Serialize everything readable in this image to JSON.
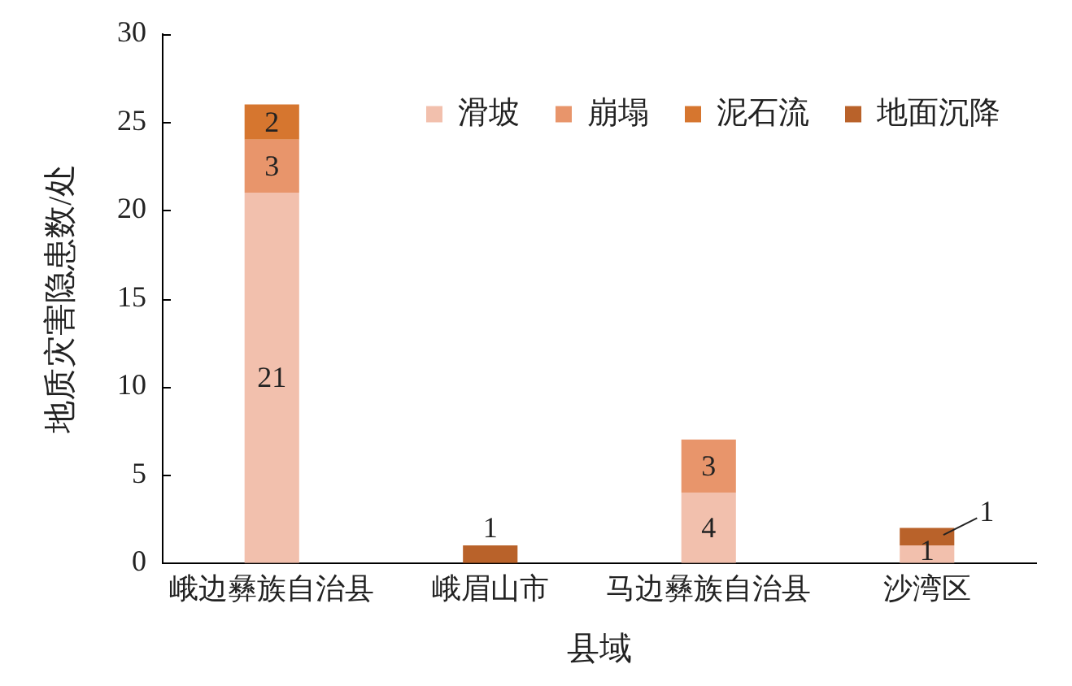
{
  "chart_data": {
    "type": "bar",
    "stacked": true,
    "xlabel": "县域",
    "ylabel": "地质灾害隐患数/处",
    "categories": [
      "峨边彝族自治县",
      "峨眉山市",
      "马边彝族自治县",
      "沙湾区"
    ],
    "series": [
      {
        "name": "滑坡",
        "color": "#f2c0ad",
        "values": [
          21,
          null,
          4,
          1
        ]
      },
      {
        "name": "崩塌",
        "color": "#e8956b",
        "values": [
          3,
          null,
          3,
          null
        ]
      },
      {
        "name": "泥石流",
        "color": "#d6762f",
        "values": [
          2,
          null,
          null,
          null
        ]
      },
      {
        "name": "地面沉降",
        "color": "#b9622a",
        "values": [
          null,
          1,
          null,
          1
        ]
      }
    ],
    "ylim": [
      0,
      30
    ],
    "yticks": [
      0,
      5,
      10,
      15,
      20,
      25,
      30
    ],
    "grid": false,
    "legend": "top right",
    "data_labels": true
  }
}
